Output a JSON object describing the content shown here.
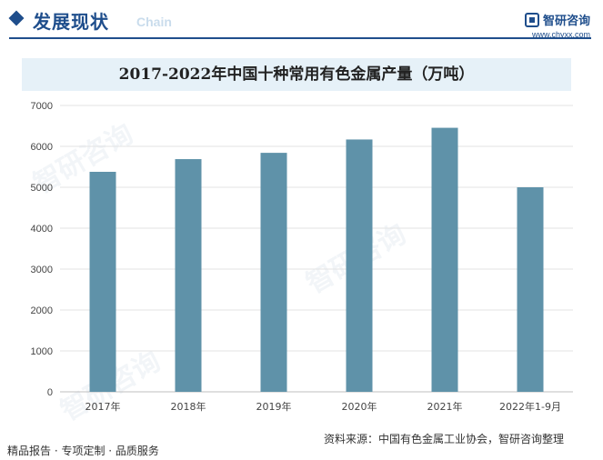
{
  "header": {
    "section_title": "发展现状",
    "section_sub": "Chain",
    "brand_name": "智研咨询",
    "brand_url": "www.chyxx.com",
    "watermark": "智研咨询"
  },
  "chart_data": {
    "type": "bar",
    "title": "2017-2022年中国十种常用有色金属产量（万吨）",
    "categories": [
      "2017年",
      "2018年",
      "2019年",
      "2020年",
      "2021年",
      "2022年1-9月"
    ],
    "values": [
      5378,
      5688,
      5842,
      6168,
      6454,
      5000
    ],
    "xlabel": "",
    "ylabel": "",
    "ylim": [
      0,
      7000
    ],
    "yticks": [
      0,
      1000,
      2000,
      3000,
      4000,
      5000,
      6000,
      7000
    ],
    "grid": true,
    "bar_color": "#5f92a9"
  },
  "footer": {
    "left": "精品报告 · 专项定制 · 品质服务",
    "source": "资料来源：中国有色金属工业协会，智研咨询整理"
  }
}
